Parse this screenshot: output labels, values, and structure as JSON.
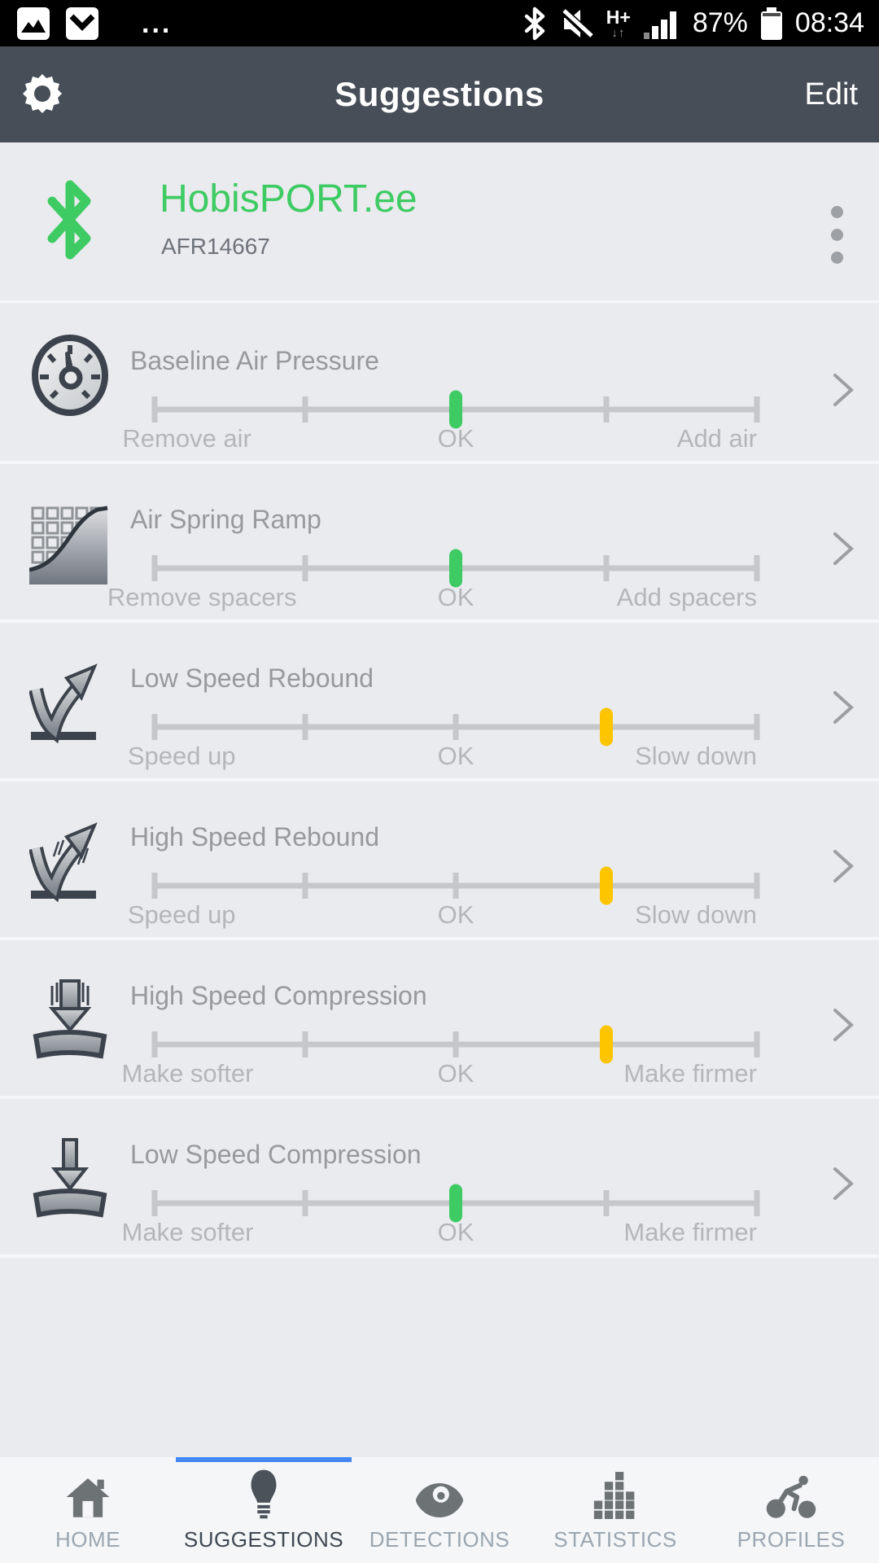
{
  "status_bar": {
    "time": "08:34",
    "battery_percent": "87%",
    "network_label": "H+",
    "network_arrows": "↓↑",
    "ellipsis": "...",
    "notification_icons": [
      "screenshot-icon",
      "mail-icon"
    ],
    "right_icons": [
      "bluetooth-icon",
      "mute-icon",
      "network-icon",
      "signal-icon",
      "battery-icon"
    ]
  },
  "app_bar": {
    "title": "Suggestions",
    "edit_label": "Edit",
    "left_icon": "gear-icon"
  },
  "device": {
    "name": "HobisPORT.ee",
    "id": "AFR14667",
    "icon": "bluetooth-icon",
    "menu_icon": "kebab-menu-icon"
  },
  "suggestions": [
    {
      "icon": "pressure-gauge-icon",
      "title": "Baseline Air Pressure",
      "left_label": "Remove air",
      "center_label": "OK",
      "right_label": "Add air",
      "value_percent": 50,
      "status": "ok",
      "status_color": "#3ecb63"
    },
    {
      "icon": "air-spring-ramp-icon",
      "title": "Air Spring Ramp",
      "left_label": "Remove spacers",
      "center_label": "OK",
      "right_label": "Add spacers",
      "value_percent": 50,
      "status": "ok",
      "status_color": "#3ecb63"
    },
    {
      "icon": "low-speed-rebound-icon",
      "title": "Low Speed Rebound",
      "left_label": "Speed up",
      "center_label": "OK",
      "right_label": "Slow down",
      "value_percent": 75,
      "status": "adjust",
      "status_color": "#fdc500"
    },
    {
      "icon": "high-speed-rebound-icon",
      "title": "High Speed Rebound",
      "left_label": "Speed up",
      "center_label": "OK",
      "right_label": "Slow down",
      "value_percent": 75,
      "status": "adjust",
      "status_color": "#fdc500"
    },
    {
      "icon": "high-speed-compression-icon",
      "title": "High Speed Compression",
      "left_label": "Make softer",
      "center_label": "OK",
      "right_label": "Make firmer",
      "value_percent": 75,
      "status": "adjust",
      "status_color": "#fdc500"
    },
    {
      "icon": "low-speed-compression-icon",
      "title": "Low Speed Compression",
      "left_label": "Make softer",
      "center_label": "OK",
      "right_label": "Make firmer",
      "value_percent": 50,
      "status": "ok",
      "status_color": "#3ecb63"
    }
  ],
  "bottom_nav": {
    "active": "SUGGESTIONS",
    "items": [
      {
        "label": "HOME",
        "icon": "home-icon"
      },
      {
        "label": "SUGGESTIONS",
        "icon": "lightbulb-icon"
      },
      {
        "label": "DETECTIONS",
        "icon": "eye-icon"
      },
      {
        "label": "STATISTICS",
        "icon": "bar-chart-icon"
      },
      {
        "label": "PROFILES",
        "icon": "cyclist-icon"
      }
    ]
  },
  "colors": {
    "brand_green": "#3ecb63",
    "warn_yellow": "#fdc500",
    "accent_blue": "#4286f5",
    "app_bar": "#474e58"
  }
}
